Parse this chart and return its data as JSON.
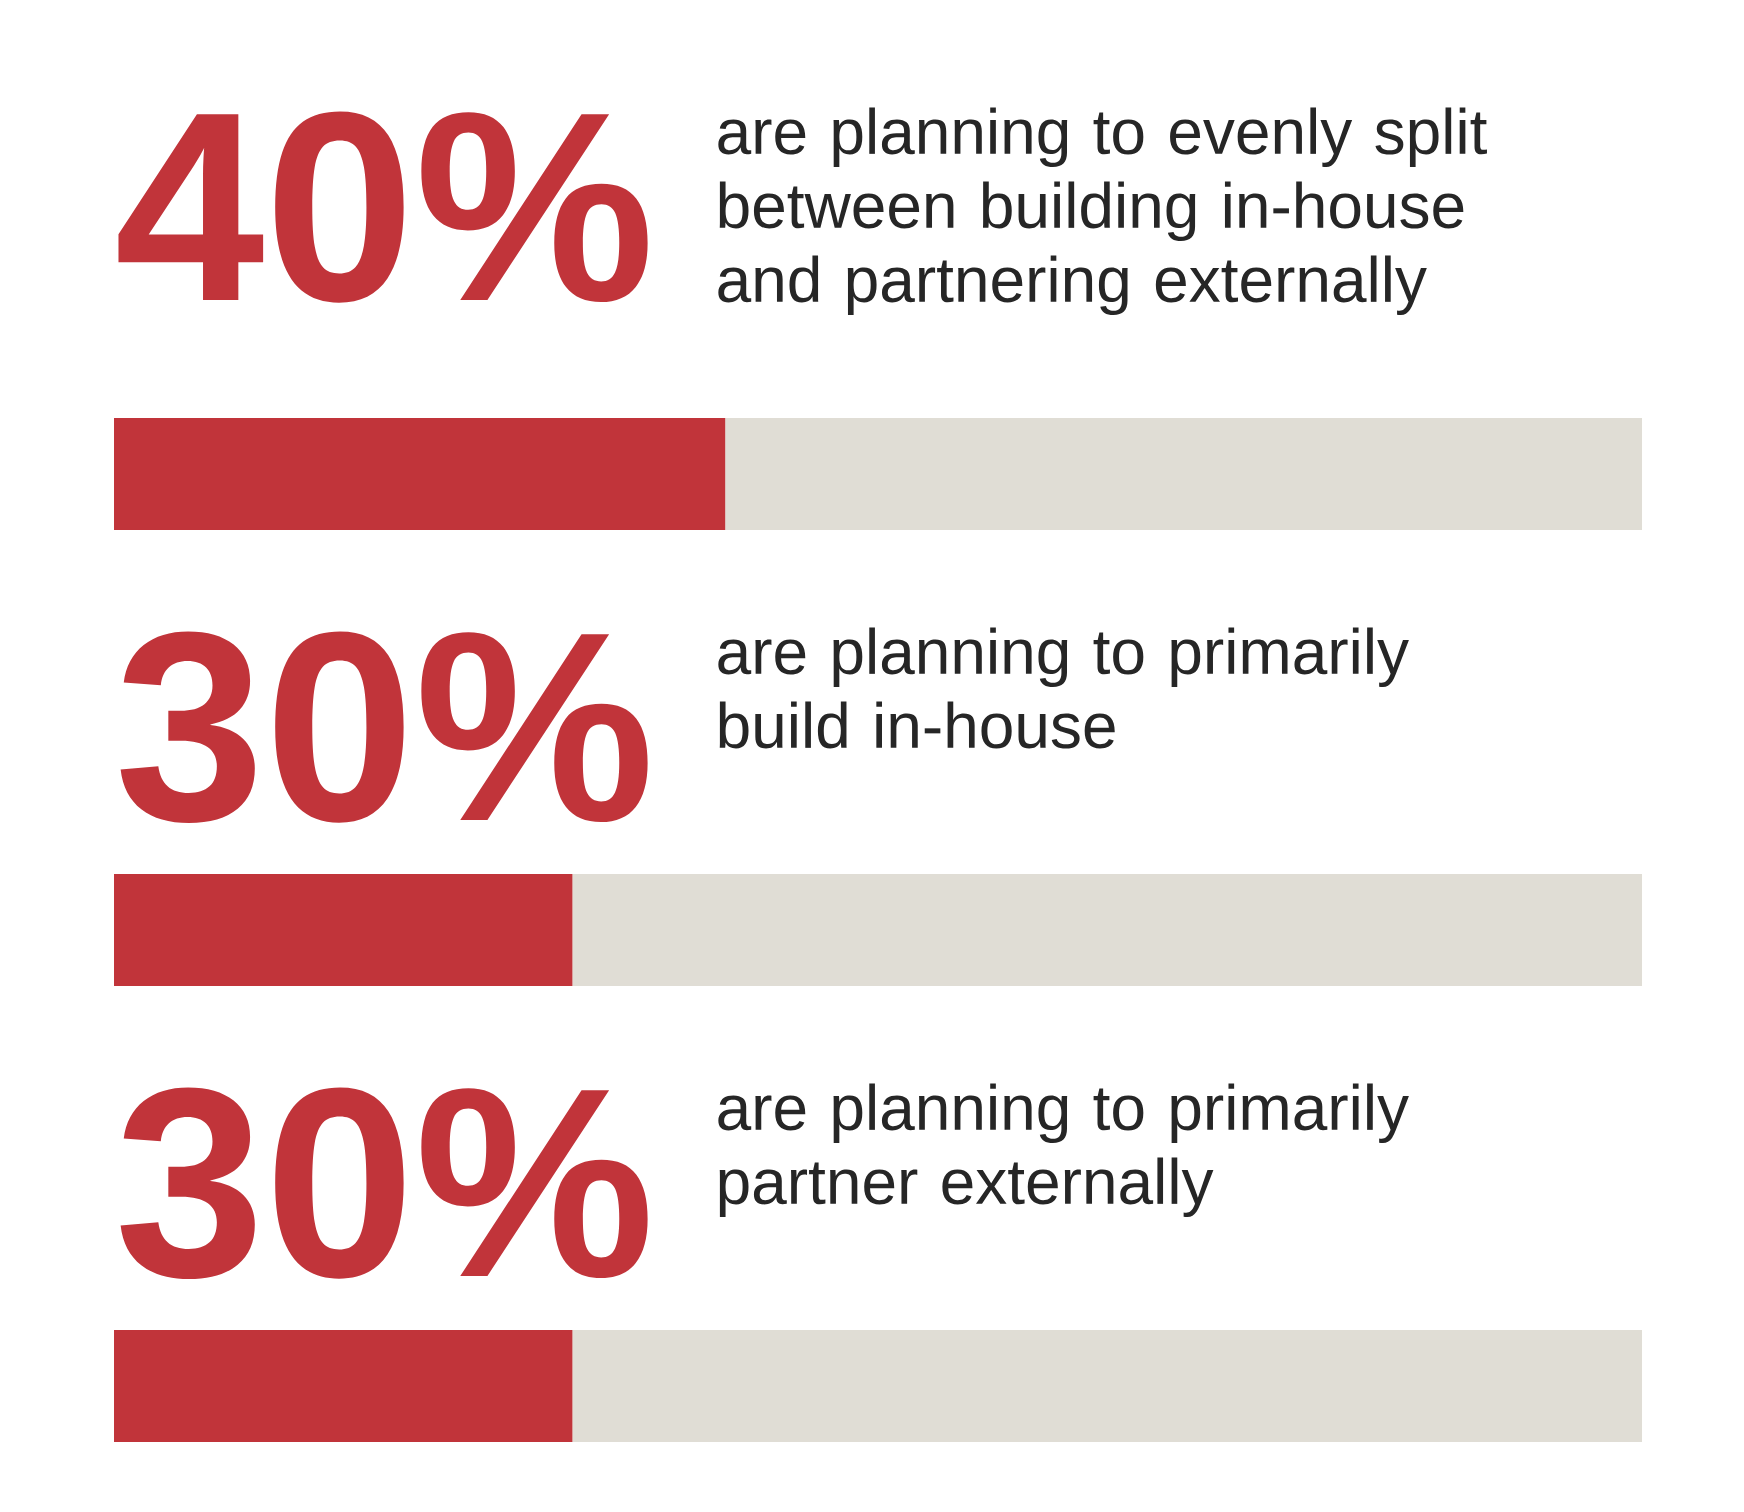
{
  "chart_data": {
    "type": "bar",
    "orientation": "horizontal",
    "stacked": true,
    "tick_labels": false,
    "xlim": [
      0,
      100
    ],
    "categories": [
      "are planning to evenly split between building in-house and partnering externally",
      "are planning to primarily build in-house",
      "are planning to primarily partner externally"
    ],
    "series": [
      {
        "color": "#c1343a",
        "values": [
          40,
          30,
          30
        ],
        "value_labels": [
          "40%",
          "30%",
          "30%"
        ]
      },
      {
        "color": "#e0ddd5",
        "values": [
          60,
          70,
          70
        ]
      }
    ]
  }
}
